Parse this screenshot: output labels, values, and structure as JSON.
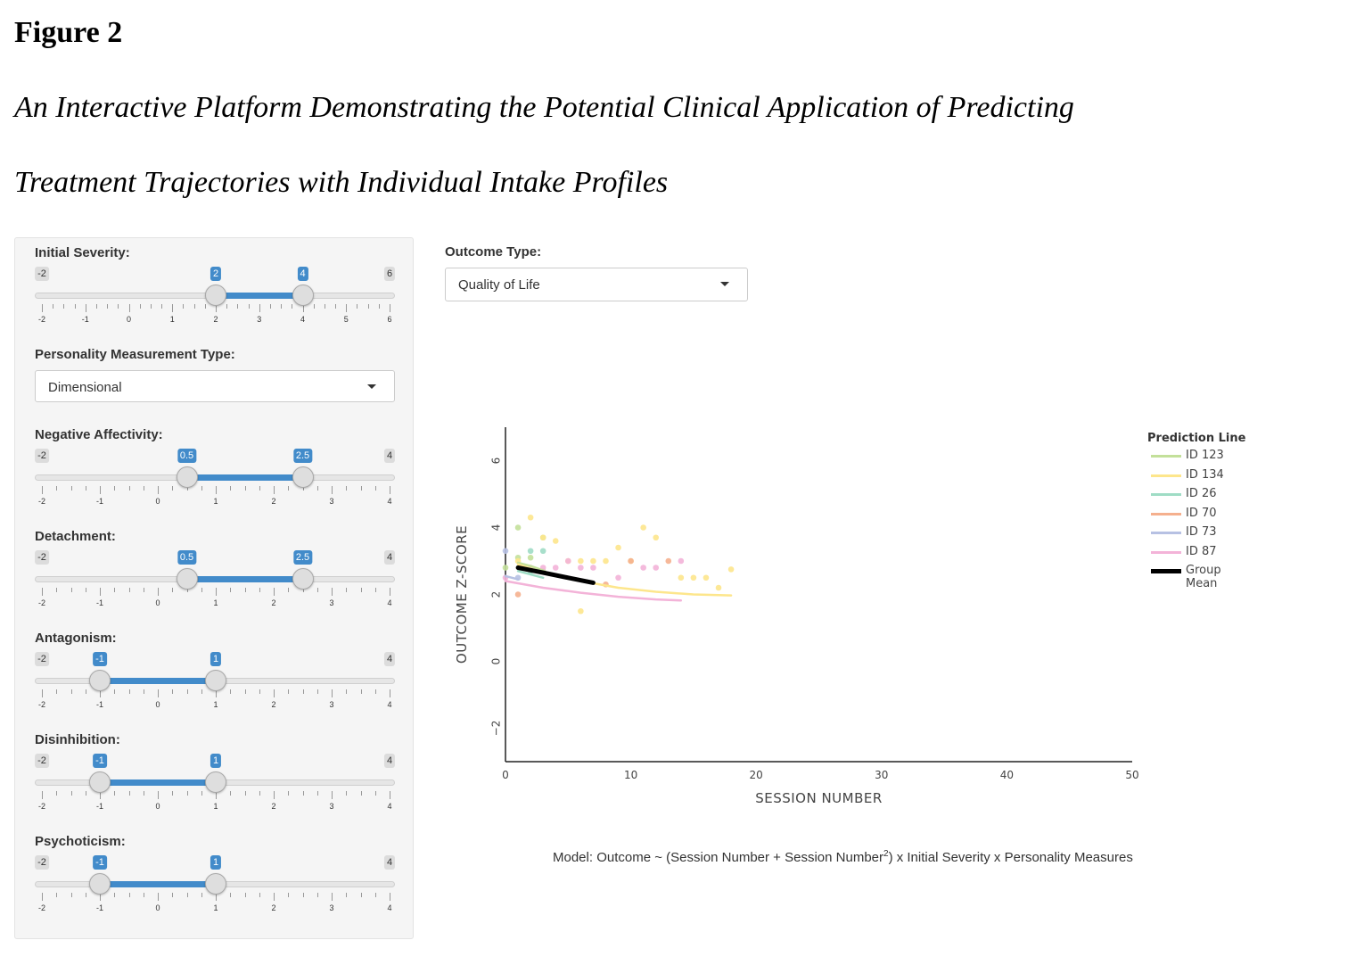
{
  "figure": {
    "label": "Figure 2",
    "title_line1": "An Interactive Platform Demonstrating the Potential Clinical Application of Predicting",
    "title_line2": "Treatment Trajectories with Individual Intake Profiles"
  },
  "sidebar": {
    "initial_severity": {
      "label": "Initial Severity:",
      "min": -2,
      "max": 6,
      "low": 2,
      "high": 4,
      "min_label": "-2",
      "max_label": "6",
      "low_label": "2",
      "high_label": "4",
      "ticks": [
        "-2",
        "-1",
        "0",
        "1",
        "2",
        "3",
        "4",
        "5",
        "6"
      ]
    },
    "personality_type": {
      "label": "Personality Measurement Type:",
      "value": "Dimensional"
    },
    "negative_affectivity": {
      "label": "Negative Affectivity:",
      "min": -2,
      "max": 4,
      "low": 0.5,
      "high": 2.5,
      "min_label": "-2",
      "max_label": "4",
      "low_label": "0.5",
      "high_label": "2.5",
      "ticks": [
        "-2",
        "-1",
        "0",
        "1",
        "2",
        "3",
        "4"
      ]
    },
    "detachment": {
      "label": "Detachment:",
      "min": -2,
      "max": 4,
      "low": 0.5,
      "high": 2.5,
      "min_label": "-2",
      "max_label": "4",
      "low_label": "0.5",
      "high_label": "2.5",
      "ticks": [
        "-2",
        "-1",
        "0",
        "1",
        "2",
        "3",
        "4"
      ]
    },
    "antagonism": {
      "label": "Antagonism:",
      "min": -2,
      "max": 4,
      "low": -1,
      "high": 1,
      "min_label": "-2",
      "max_label": "4",
      "low_label": "-1",
      "high_label": "1",
      "ticks": [
        "-2",
        "-1",
        "0",
        "1",
        "2",
        "3",
        "4"
      ]
    },
    "disinhibition": {
      "label": "Disinhibition:",
      "min": -2,
      "max": 4,
      "low": -1,
      "high": 1,
      "min_label": "-2",
      "max_label": "4",
      "low_label": "-1",
      "high_label": "1",
      "ticks": [
        "-2",
        "-1",
        "0",
        "1",
        "2",
        "3",
        "4"
      ]
    },
    "psychoticism": {
      "label": "Psychoticism:",
      "min": -2,
      "max": 4,
      "low": -1,
      "high": 1,
      "min_label": "-2",
      "max_label": "4",
      "low_label": "-1",
      "high_label": "1",
      "ticks": [
        "-2",
        "-1",
        "0",
        "1",
        "2",
        "3",
        "4"
      ]
    }
  },
  "outcome": {
    "label": "Outcome Type:",
    "value": "Quality of Life"
  },
  "chart_data": {
    "type": "scatter",
    "xlabel": "SESSION NUMBER",
    "ylabel": "OUTCOME Z-SCORE",
    "xlim": [
      0,
      50
    ],
    "ylim": [
      -3,
      7
    ],
    "xticks": [
      0,
      10,
      20,
      30,
      40,
      50
    ],
    "yticks": [
      -2,
      0,
      2,
      4,
      6
    ],
    "grid": false,
    "legend_title": "Prediction Line",
    "legend_position": "right",
    "series": [
      {
        "name": "ID 123",
        "color": "#c3e09a",
        "points": [
          [
            0,
            2.8
          ],
          [
            1,
            4.0
          ],
          [
            1,
            3.1
          ],
          [
            2,
            3.1
          ],
          [
            3,
            3.7
          ],
          [
            3,
            2.7
          ]
        ],
        "line": [
          [
            1,
            2.95
          ],
          [
            2,
            2.85
          ],
          [
            3,
            2.72
          ]
        ]
      },
      {
        "name": "ID 134",
        "color": "#fde68c",
        "points": [
          [
            1,
            3.0
          ],
          [
            2,
            4.3
          ],
          [
            3,
            3.7
          ],
          [
            4,
            3.6
          ],
          [
            5,
            3.0
          ],
          [
            6,
            3.0
          ],
          [
            7,
            3.0
          ],
          [
            8,
            3.0
          ],
          [
            9,
            3.4
          ],
          [
            10,
            3.0
          ],
          [
            11,
            4.0
          ],
          [
            12,
            3.7
          ],
          [
            14,
            2.5
          ],
          [
            15,
            2.5
          ],
          [
            16,
            2.5
          ],
          [
            17,
            2.2
          ],
          [
            18,
            2.75
          ],
          [
            6,
            1.5
          ]
        ],
        "line": [
          [
            1,
            2.9
          ],
          [
            3,
            2.65
          ],
          [
            6,
            2.4
          ],
          [
            9,
            2.2
          ],
          [
            12,
            2.08
          ],
          [
            15,
            2.0
          ],
          [
            18,
            1.97
          ]
        ]
      },
      {
        "name": "ID 26",
        "color": "#9fdcc5",
        "points": [
          [
            2,
            3.3
          ],
          [
            3,
            3.3
          ],
          [
            2,
            2.7
          ]
        ],
        "line": [
          [
            1,
            2.7
          ],
          [
            2,
            2.6
          ],
          [
            3,
            2.5
          ]
        ]
      },
      {
        "name": "ID 70",
        "color": "#f5b08e",
        "points": [
          [
            1,
            2.0
          ],
          [
            8,
            2.3
          ],
          [
            10,
            3.0
          ],
          [
            13,
            3.0
          ]
        ],
        "line": []
      },
      {
        "name": "ID 73",
        "color": "#b7c1e3",
        "points": [
          [
            0,
            3.3
          ],
          [
            1,
            2.5
          ]
        ],
        "line": [
          [
            0,
            2.55
          ],
          [
            1,
            2.45
          ]
        ]
      },
      {
        "name": "ID 87",
        "color": "#f3b3d8",
        "points": [
          [
            0,
            2.5
          ],
          [
            2,
            2.8
          ],
          [
            3,
            2.8
          ],
          [
            4,
            2.8
          ],
          [
            5,
            3.0
          ],
          [
            6,
            2.8
          ],
          [
            7,
            2.8
          ],
          [
            9,
            2.5
          ],
          [
            11,
            2.8
          ],
          [
            12,
            2.8
          ],
          [
            14,
            3.0
          ]
        ],
        "line": [
          [
            0,
            2.4
          ],
          [
            3,
            2.2
          ],
          [
            6,
            2.05
          ],
          [
            9,
            1.93
          ],
          [
            12,
            1.85
          ],
          [
            14,
            1.82
          ]
        ]
      },
      {
        "name": "Group Mean",
        "color": "#000000",
        "width": 5,
        "points": [],
        "line": [
          [
            1,
            2.8
          ],
          [
            3,
            2.65
          ],
          [
            5,
            2.5
          ],
          [
            7,
            2.35
          ]
        ]
      }
    ]
  },
  "model_caption": {
    "prefix": "Model: Outcome ~ (Session Number + Session Number",
    "superscript": "2",
    "suffix": ") x Initial Severity x Personality Measures"
  }
}
